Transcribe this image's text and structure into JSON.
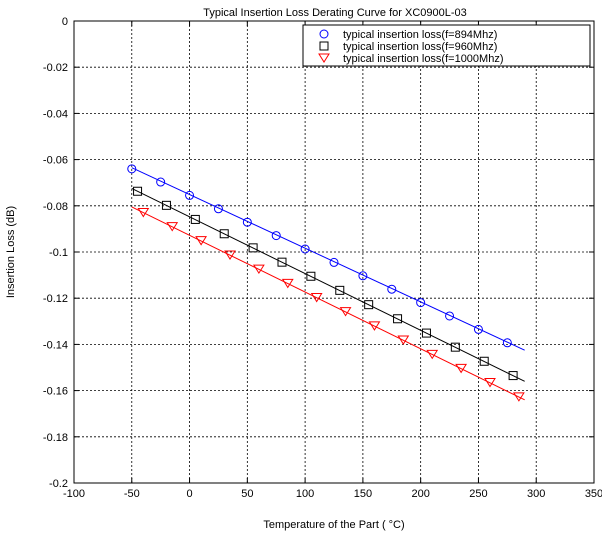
{
  "chart_data": {
    "type": "scatter",
    "title": "Typical Insertion Loss Derating Curve for XC0900L-03",
    "xlabel": "Temperature of the Part ( °C)",
    "ylabel": "Insertion Loss (dB)",
    "xlim": [
      -100,
      350
    ],
    "ylim": [
      -0.2,
      0
    ],
    "x_ticks": [
      -100,
      -50,
      0,
      50,
      100,
      150,
      200,
      250,
      300,
      350
    ],
    "x_tick_labels": [
      "-100",
      "-50",
      "0",
      "50",
      "100",
      "150",
      "200",
      "250",
      "300",
      "350"
    ],
    "y_ticks": [
      0,
      -0.02,
      -0.04,
      -0.06,
      -0.08,
      -0.1,
      -0.12,
      -0.14,
      -0.16,
      -0.18,
      -0.2
    ],
    "y_tick_labels": [
      "0",
      "-0.02",
      "-0.04",
      "-0.06",
      "-0.08",
      "-0.1",
      "-0.12",
      "-0.14",
      "-0.16",
      "-0.18",
      "-0.2"
    ],
    "grid": true,
    "legend_position": "top-right",
    "series": [
      {
        "name": "typical insertion loss(f=894Mhz)",
        "marker": "circle",
        "color": "#0000ff",
        "line_color": "#0000ff",
        "line": [
          [
            -50,
            -0.0635
          ],
          [
            290,
            -0.1425
          ]
        ],
        "x": [
          -50,
          -25,
          0,
          25,
          50,
          75,
          100,
          125,
          150,
          175,
          200,
          225,
          250,
          275
        ],
        "y": [
          -0.064,
          -0.0697,
          -0.0755,
          -0.0813,
          -0.0871,
          -0.0929,
          -0.0987,
          -0.1045,
          -0.1103,
          -0.1161,
          -0.1219,
          -0.1277,
          -0.1335,
          -0.1393
        ]
      },
      {
        "name": "typical insertion loss(f=960Mhz)",
        "marker": "square",
        "color": "#000000",
        "line_color": "#000000",
        "line": [
          [
            -50,
            -0.0725
          ],
          [
            290,
            -0.156
          ]
        ],
        "x": [
          -45,
          -20,
          5,
          30,
          55,
          80,
          105,
          130,
          155,
          180,
          205,
          230,
          255,
          280
        ],
        "y": [
          -0.0737,
          -0.0798,
          -0.0859,
          -0.0921,
          -0.0982,
          -0.1044,
          -0.1105,
          -0.1166,
          -0.1228,
          -0.1289,
          -0.1351,
          -0.1412,
          -0.1473,
          -0.1535
        ]
      },
      {
        "name": "typical insertion loss(f=1000Mhz)",
        "marker": "triangle-down",
        "color": "#ff0000",
        "line_color": "#ff0000",
        "line": [
          [
            -50,
            -0.0805
          ],
          [
            290,
            -0.164
          ]
        ],
        "x": [
          -40,
          -15,
          10,
          35,
          60,
          85,
          110,
          135,
          160,
          185,
          210,
          235,
          260,
          285
        ],
        "y": [
          -0.0829,
          -0.089,
          -0.0951,
          -0.1013,
          -0.1074,
          -0.1136,
          -0.1197,
          -0.1258,
          -0.132,
          -0.1381,
          -0.1443,
          -0.1504,
          -0.1565,
          -0.1627
        ]
      }
    ]
  }
}
